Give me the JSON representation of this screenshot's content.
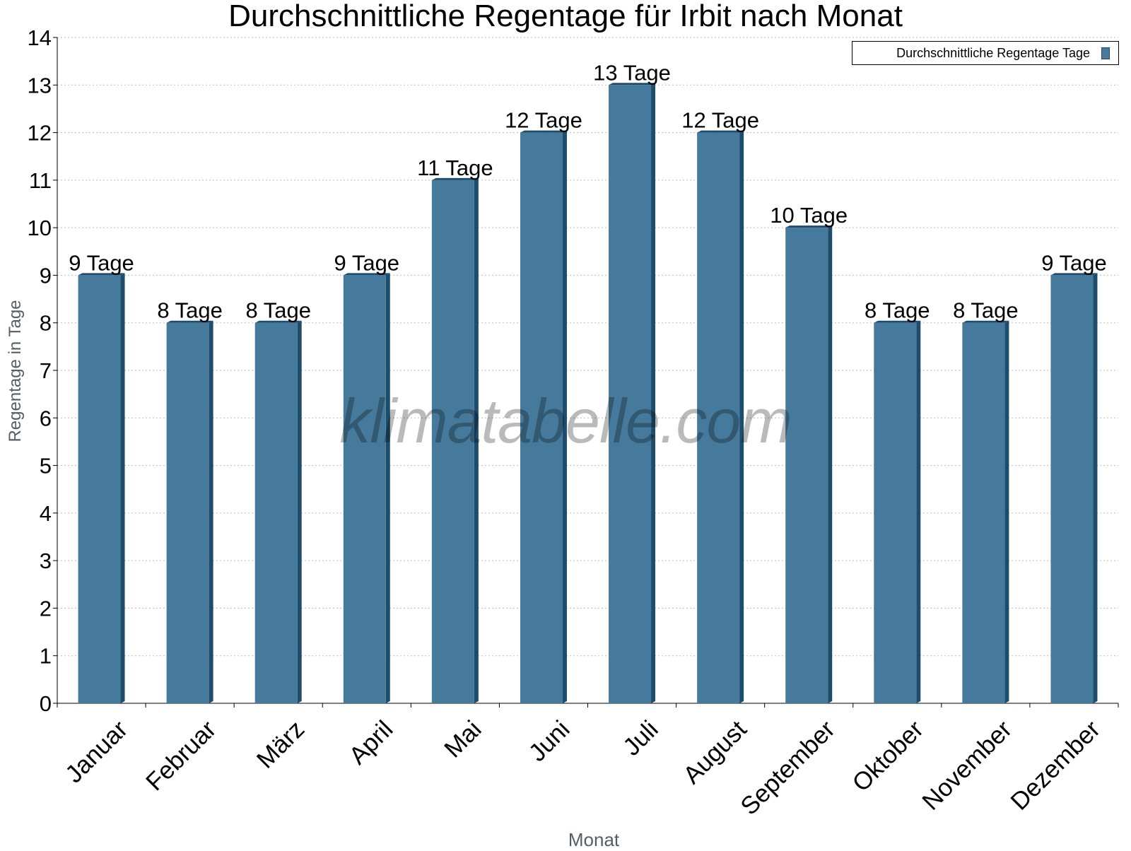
{
  "chart_data": {
    "type": "bar",
    "title": "Durchschnittliche Regentage für Irbit nach Monat",
    "xlabel": "Monat",
    "ylabel": "Regentage in Tage",
    "categories": [
      "Januar",
      "Februar",
      "März",
      "April",
      "Mai",
      "Juni",
      "Juli",
      "August",
      "September",
      "Oktober",
      "November",
      "Dezember"
    ],
    "series": [
      {
        "name": "Durchschnittliche Regentage Tage",
        "values": [
          9,
          8,
          8,
          9,
          11,
          12,
          13,
          12,
          10,
          8,
          8,
          9
        ],
        "labels": [
          "9 Tage",
          "8 Tage",
          "8 Tage",
          "9 Tage",
          "11 Tage",
          "12 Tage",
          "13 Tage",
          "12 Tage",
          "10 Tage",
          "8 Tage",
          "8 Tage",
          "9 Tage"
        ]
      }
    ],
    "ylim": [
      0,
      14
    ],
    "yticks": [
      "0",
      "1",
      "2",
      "3",
      "4",
      "5",
      "6",
      "7",
      "8",
      "9",
      "10",
      "11",
      "12",
      "13",
      "14"
    ],
    "grid": true,
    "legend_position": "top-right",
    "colors": {
      "bar": "#467a9c",
      "bar_side": "#1e4c6c",
      "grid": "#bbbbbb"
    },
    "watermark": "klimatabelle.com"
  }
}
